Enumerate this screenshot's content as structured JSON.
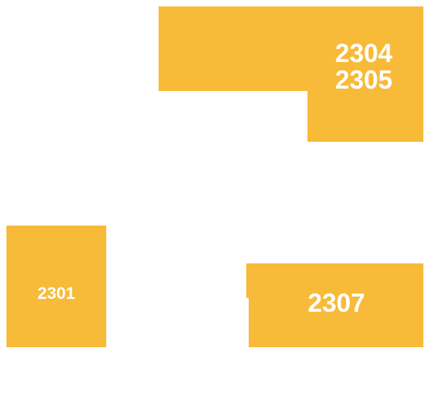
{
  "floor_plan": {
    "unit_color": "#F8BA39",
    "units": [
      {
        "id": "2304-2305",
        "labels": [
          "2304",
          "2305"
        ]
      },
      {
        "id": "2301",
        "labels": [
          "2301"
        ]
      },
      {
        "id": "2307",
        "labels": [
          "2307"
        ]
      }
    ]
  }
}
